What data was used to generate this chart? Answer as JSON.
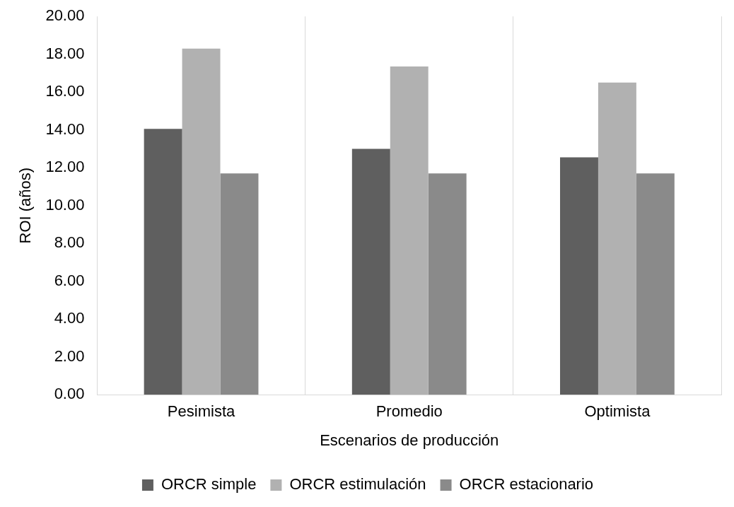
{
  "chart_data": {
    "type": "bar",
    "xlabel": "Escenarios de producción",
    "ylabel": "ROI (años)",
    "categories": [
      "Pesimista",
      "Promedio",
      "Optimista"
    ],
    "series": [
      {
        "name": "ORCR simple",
        "color": "#5f5f5f",
        "values": [
          14.05,
          13.0,
          12.55
        ]
      },
      {
        "name": "ORCR estimulación",
        "color": "#b1b1b1",
        "values": [
          18.3,
          17.35,
          16.5
        ]
      },
      {
        "name": "ORCR estacionario",
        "color": "#8a8a8a",
        "values": [
          11.7,
          11.7,
          11.7
        ]
      }
    ],
    "ylim": [
      0,
      20
    ],
    "yticks": [
      {
        "value": 0,
        "label": "0.00"
      },
      {
        "value": 2,
        "label": "2.00"
      },
      {
        "value": 4,
        "label": "4.00"
      },
      {
        "value": 6,
        "label": "6.00"
      },
      {
        "value": 8,
        "label": "8.00"
      },
      {
        "value": 10,
        "label": "10.00"
      },
      {
        "value": 12,
        "label": "12.00"
      },
      {
        "value": 14,
        "label": "14.00"
      },
      {
        "value": 16,
        "label": "16.00"
      },
      {
        "value": 18,
        "label": "18.00"
      },
      {
        "value": 20,
        "label": "20.00"
      }
    ],
    "grid": "x",
    "legend": "bottom"
  }
}
